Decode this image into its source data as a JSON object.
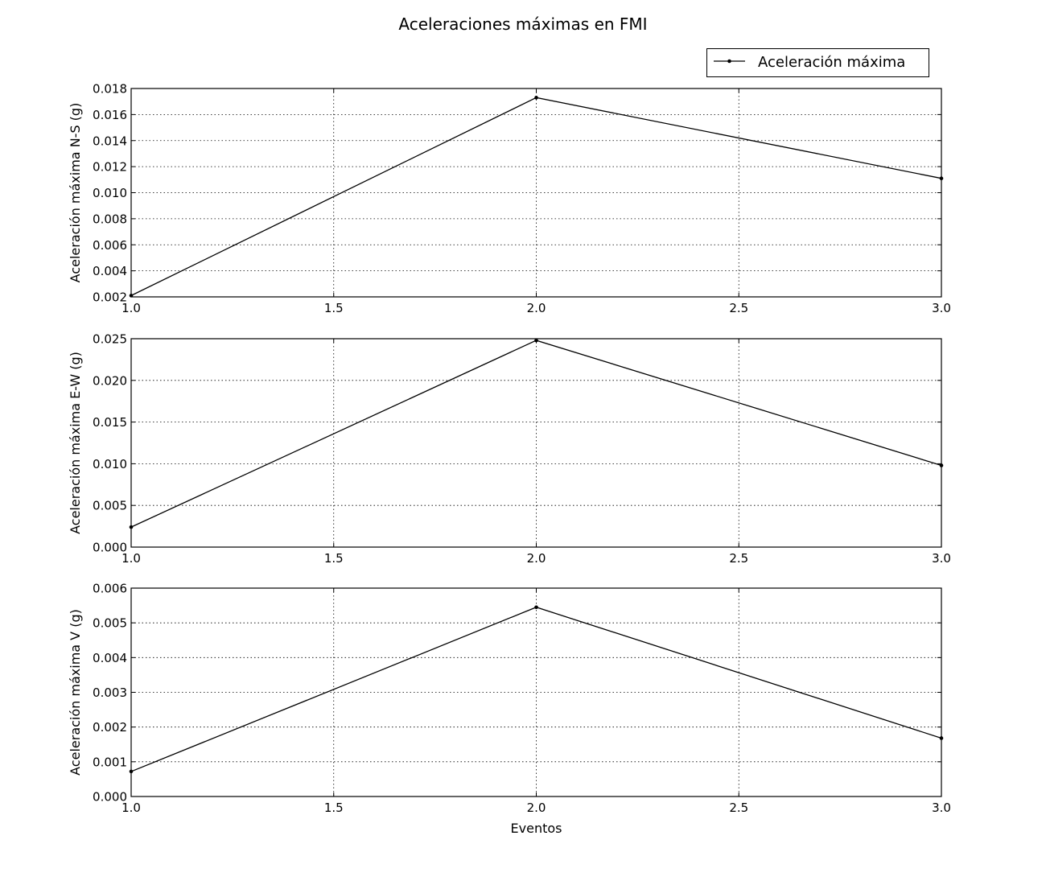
{
  "figure": {
    "title": "Aceleraciones máximas en FMI",
    "legend_label": "Aceleración máxima",
    "legend_position": "top-right"
  },
  "chart_data": [
    {
      "type": "line",
      "xlabel": "",
      "ylabel": "Aceleración máxima N-S (g)",
      "x": [
        1.0,
        2.0,
        3.0
      ],
      "y": [
        0.0021,
        0.0173,
        0.0111
      ],
      "xlim": [
        1.0,
        3.0
      ],
      "ylim": [
        0.002,
        0.018
      ],
      "xticks": [
        "1.0",
        "1.5",
        "2.0",
        "2.5",
        "3.0"
      ],
      "yticks": [
        "0.002",
        "0.004",
        "0.006",
        "0.008",
        "0.010",
        "0.012",
        "0.014",
        "0.016",
        "0.018"
      ],
      "grid": true,
      "color": "#000000"
    },
    {
      "type": "line",
      "xlabel": "",
      "ylabel": "Aceleración máxima E-W (g)",
      "x": [
        1.0,
        2.0,
        3.0
      ],
      "y": [
        0.0024,
        0.0248,
        0.0098
      ],
      "xlim": [
        1.0,
        3.0
      ],
      "ylim": [
        0.0,
        0.025
      ],
      "xticks": [
        "1.0",
        "1.5",
        "2.0",
        "2.5",
        "3.0"
      ],
      "yticks": [
        "0.000",
        "0.005",
        "0.010",
        "0.015",
        "0.020",
        "0.025"
      ],
      "grid": true,
      "color": "#000000"
    },
    {
      "type": "line",
      "xlabel": "Eventos",
      "ylabel": "Aceleración máxima V (g)",
      "x": [
        1.0,
        2.0,
        3.0
      ],
      "y": [
        0.00072,
        0.00545,
        0.00168
      ],
      "xlim": [
        1.0,
        3.0
      ],
      "ylim": [
        0.0,
        0.006
      ],
      "xticks": [
        "1.0",
        "1.5",
        "2.0",
        "2.5",
        "3.0"
      ],
      "yticks": [
        "0.000",
        "0.001",
        "0.002",
        "0.003",
        "0.004",
        "0.005",
        "0.006"
      ],
      "grid": true,
      "color": "#000000"
    }
  ]
}
